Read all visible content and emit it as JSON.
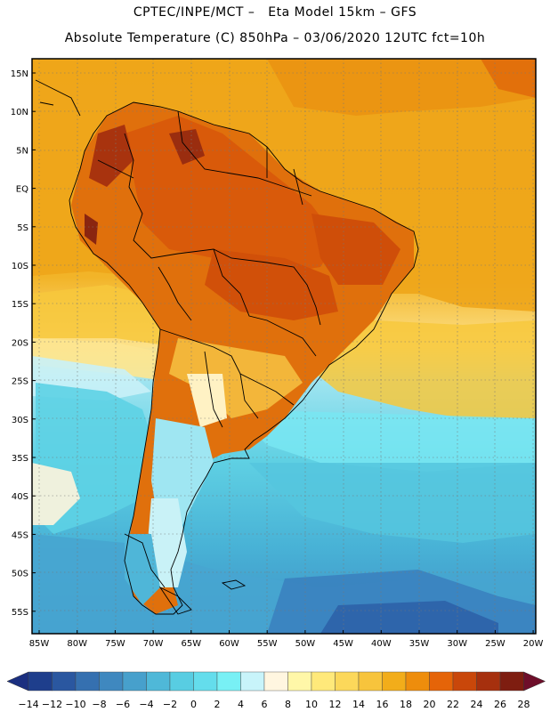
{
  "header": {
    "line1": "CPTEC/INPE/MCT –   Eta Model 15km – GFS",
    "line2": "Absolute Temperature (C) 850hPa – 03/06/2020 12UTC fct=10h"
  },
  "map": {
    "lat_labels": [
      "15N",
      "10N",
      "5N",
      "EQ",
      "5S",
      "10S",
      "15S",
      "20S",
      "25S",
      "30S",
      "35S",
      "40S",
      "45S",
      "50S",
      "55S"
    ],
    "lon_labels": [
      "85W",
      "80W",
      "75W",
      "70W",
      "65W",
      "60W",
      "55W",
      "50W",
      "45W",
      "40W",
      "35W",
      "30W",
      "25W",
      "20W"
    ]
  },
  "colorbar": {
    "labels": [
      "-14",
      "-12",
      "-10",
      "-8",
      "-6",
      "-4",
      "-2",
      "0",
      "2",
      "4",
      "6",
      "8",
      "10",
      "12",
      "14",
      "16",
      "18",
      "20",
      "22",
      "24",
      "26",
      "28"
    ],
    "colors": [
      "#1e3e8c",
      "#2a57a0",
      "#3570b0",
      "#3f88bf",
      "#47a0cc",
      "#4fb8d8",
      "#58cde2",
      "#64ddec",
      "#78f0f5",
      "#c8f4fa",
      "#fff6e0",
      "#fff7a8",
      "#ffe97a",
      "#fcd85a",
      "#f7c43c",
      "#f2ad1a",
      "#ee8d0c",
      "#e56408",
      "#c9470a",
      "#a6300e",
      "#7e1d10"
    ],
    "under_color": "#1b2f80",
    "over_color": "#6e0e2a"
  }
}
